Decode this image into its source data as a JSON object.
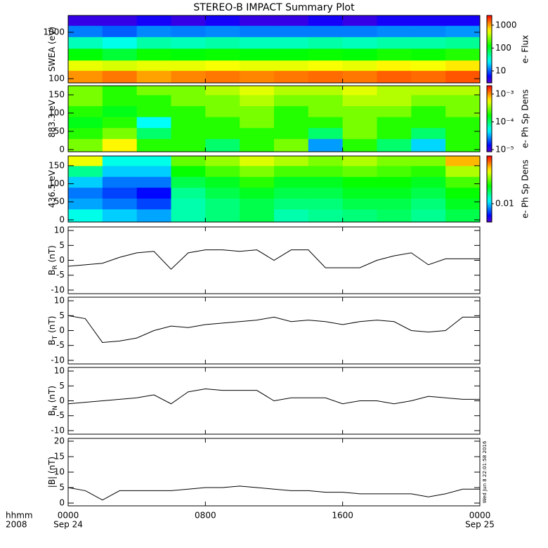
{
  "title": "STEREO-B IMPACT Summary Plot",
  "x_axis": {
    "xlim": [
      0,
      24
    ],
    "xticks": [
      {
        "value": 0,
        "label": "0000"
      },
      {
        "value": 8,
        "label": "0800"
      },
      {
        "value": 16,
        "label": "1600"
      },
      {
        "value": 24,
        "label": "0000"
      }
    ],
    "date_labels": [
      {
        "value": 0,
        "label": "Sep 24"
      },
      {
        "value": 24,
        "label": "Sep 25"
      }
    ],
    "axis_labels": [
      "hhmm",
      "2008"
    ]
  },
  "timestamp": "Wed Jun  8 22:01:58 2016",
  "chart_data": [
    {
      "type": "heatmap",
      "ylabel": "SWEA (eV)",
      "ylog": true,
      "ylim": [
        81,
        2300
      ],
      "yticks": [
        100,
        1000
      ],
      "x_edges": [
        0,
        2,
        4,
        6,
        8,
        10,
        12,
        14,
        16,
        18,
        20,
        22,
        24
      ],
      "y_edges": [
        81,
        150,
        250,
        450,
        800,
        1400,
        2300
      ],
      "values": [
        [
          1100,
          1300,
          1000,
          1200,
          1300,
          1200,
          1300,
          1400,
          1300,
          1500,
          1400,
          1600
        ],
        [
          500,
          450,
          500,
          500,
          550,
          500,
          500,
          550,
          500,
          600,
          550,
          650
        ],
        [
          120,
          90,
          130,
          120,
          130,
          120,
          120,
          130,
          120,
          140,
          130,
          150
        ],
        [
          40,
          30,
          45,
          40,
          45,
          40,
          40,
          45,
          40,
          45,
          45,
          50
        ],
        [
          12,
          10,
          13,
          12,
          13,
          12,
          12,
          12,
          12,
          13,
          13,
          14
        ],
        [
          4,
          4,
          5,
          4,
          5,
          4,
          4,
          5,
          4,
          5,
          5,
          5
        ]
      ],
      "colorbar_label": "e- Flux",
      "zlog": true,
      "zlim": [
        3,
        2660
      ],
      "zticks": [
        10,
        100,
        1000
      ]
    },
    {
      "type": "heatmap",
      "ylabel": "883.3 eV",
      "ylog": false,
      "ylim": [
        -6,
        175
      ],
      "yticks": [
        0,
        50,
        100,
        150
      ],
      "x_edges": [
        0,
        2,
        4,
        6,
        8,
        10,
        12,
        14,
        16,
        18,
        20,
        22,
        24
      ],
      "y_edges": [
        -6,
        30,
        60,
        90,
        120,
        150,
        175
      ],
      "values": [
        [
          0.0003,
          0.0006,
          0.0002,
          0.0002,
          0.0001,
          0.0002,
          0.0003,
          3e-05,
          0.0002,
          0.0001,
          4e-05,
          0.0002
        ],
        [
          0.0002,
          0.0003,
          0.0001,
          0.0002,
          0.0002,
          0.0002,
          0.0002,
          0.0001,
          0.0003,
          0.0002,
          0.0001,
          0.0002
        ],
        [
          0.00015,
          0.0002,
          5e-05,
          0.0002,
          0.0002,
          0.0003,
          0.0002,
          0.0002,
          0.0003,
          0.0002,
          0.0002,
          0.0002
        ],
        [
          0.0002,
          0.00015,
          0.0002,
          0.0002,
          0.0003,
          0.0003,
          0.0002,
          0.0003,
          0.0003,
          0.0003,
          0.0002,
          0.0003
        ],
        [
          0.0003,
          0.0002,
          0.0002,
          0.0003,
          0.0003,
          0.0004,
          0.0003,
          0.0003,
          0.0004,
          0.0004,
          0.0003,
          0.0003
        ],
        [
          0.0003,
          0.0002,
          0.0003,
          0.0003,
          0.0004,
          0.0005,
          0.0004,
          0.0004,
          0.0005,
          0.0004,
          0.0004,
          0.0004
        ]
      ],
      "colorbar_label": "e- Ph Sp Dens",
      "zlog": true,
      "zlim": [
        8.4e-06,
        0.002
      ],
      "zticks": [
        {
          "value": 1e-05,
          "label": "10⁻⁵"
        },
        {
          "value": 0.0001,
          "label": "10⁻⁴"
        },
        {
          "value": 0.001,
          "label": "10⁻³"
        }
      ]
    },
    {
      "type": "heatmap",
      "ylabel": "436.5 eV",
      "ylog": false,
      "ylim": [
        -6,
        177
      ],
      "yticks": [
        0,
        50,
        100,
        150
      ],
      "x_edges": [
        0,
        2,
        4,
        6,
        8,
        10,
        12,
        14,
        16,
        18,
        20,
        22,
        24
      ],
      "y_edges": [
        -6,
        30,
        60,
        90,
        120,
        150,
        177
      ],
      "values": [
        [
          0.012,
          0.01,
          0.009,
          0.014,
          0.016,
          0.018,
          0.014,
          0.015,
          0.016,
          0.017,
          0.015,
          0.018
        ],
        [
          0.009,
          0.008,
          0.007,
          0.014,
          0.016,
          0.018,
          0.016,
          0.016,
          0.018,
          0.018,
          0.016,
          0.02
        ],
        [
          0.008,
          0.007,
          0.006,
          0.015,
          0.018,
          0.02,
          0.018,
          0.018,
          0.02,
          0.02,
          0.018,
          0.022
        ],
        [
          0.01,
          0.008,
          0.008,
          0.018,
          0.02,
          0.024,
          0.02,
          0.02,
          0.022,
          0.022,
          0.02,
          0.026
        ],
        [
          0.015,
          0.01,
          0.01,
          0.022,
          0.026,
          0.03,
          0.026,
          0.026,
          0.028,
          0.026,
          0.024,
          0.034
        ],
        [
          0.04,
          0.012,
          0.012,
          0.028,
          0.032,
          0.038,
          0.034,
          0.03,
          0.034,
          0.03,
          0.03,
          0.05
        ]
      ],
      "colorbar_label": "e- Ph Sp Dens",
      "zlog": true,
      "zlim": [
        0.0045,
        0.08
      ],
      "zticks": [
        0.01
      ]
    },
    {
      "type": "line",
      "ylabel": "B",
      "ylabel_sub": "R",
      "ylabel_units": " (nT)",
      "ylim": [
        -11.2,
        11.2
      ],
      "yticks": [
        -10,
        -5,
        0,
        5,
        10
      ],
      "x": [
        0,
        1,
        2,
        3,
        4,
        5,
        6,
        7,
        8,
        9,
        10,
        11,
        12,
        13,
        14,
        15,
        16,
        17,
        18,
        19,
        20,
        21,
        22,
        23,
        24
      ],
      "values": [
        -2,
        -1.5,
        -1,
        1,
        2.5,
        3,
        -3,
        2.5,
        3.5,
        3.5,
        3,
        3.5,
        0,
        3.5,
        3.5,
        -2.5,
        -2.5,
        -2.5,
        0,
        1.5,
        2.5,
        -1.5,
        0.5,
        0.5,
        0.5
      ],
      "color": "#000000"
    },
    {
      "type": "line",
      "ylabel": "B",
      "ylabel_sub": "T",
      "ylabel_units": " (nT)",
      "ylim": [
        -11.2,
        11.2
      ],
      "yticks": [
        -10,
        -5,
        0,
        5,
        10
      ],
      "x": [
        0,
        1,
        2,
        3,
        4,
        5,
        6,
        7,
        8,
        9,
        10,
        11,
        12,
        13,
        14,
        15,
        16,
        17,
        18,
        19,
        20,
        21,
        22,
        23,
        24
      ],
      "values": [
        5,
        4,
        -4,
        -3.5,
        -2.5,
        0,
        1.5,
        1,
        2,
        2.5,
        3,
        3.5,
        4.5,
        3,
        3.5,
        3,
        2,
        3,
        3.5,
        3,
        0,
        -0.5,
        0,
        4.5,
        4.5
      ],
      "color": "#000000"
    },
    {
      "type": "line",
      "ylabel": "B",
      "ylabel_sub": "N",
      "ylabel_units": " (nT)",
      "ylim": [
        -11.2,
        11.2
      ],
      "yticks": [
        -10,
        -5,
        0,
        5,
        10
      ],
      "x": [
        0,
        1,
        2,
        3,
        4,
        5,
        6,
        7,
        8,
        9,
        10,
        11,
        12,
        13,
        14,
        15,
        16,
        17,
        18,
        19,
        20,
        21,
        22,
        23,
        24
      ],
      "values": [
        -1,
        -0.5,
        0,
        0.5,
        1,
        2,
        -1,
        3,
        4,
        3.5,
        3.5,
        3.5,
        0,
        1,
        1,
        1,
        -1,
        0,
        0,
        -1,
        0,
        1.5,
        1,
        0.5,
        0.5
      ],
      "color": "#000000"
    },
    {
      "type": "line",
      "ylabel": "|B| (nT)",
      "ylim": [
        -0.9,
        20.9
      ],
      "yticks": [
        0,
        5,
        10,
        15,
        20
      ],
      "x": [
        0,
        1,
        2,
        3,
        4,
        5,
        6,
        7,
        8,
        9,
        10,
        11,
        12,
        13,
        14,
        15,
        16,
        17,
        18,
        19,
        20,
        21,
        22,
        23,
        24
      ],
      "values": [
        5,
        4,
        1,
        4,
        4,
        4,
        4,
        4.5,
        5,
        5,
        5.5,
        5,
        4.5,
        4,
        4,
        3.5,
        3.5,
        3,
        3,
        3,
        3,
        2,
        3,
        4.5,
        4.5
      ],
      "color": "#000000"
    }
  ]
}
